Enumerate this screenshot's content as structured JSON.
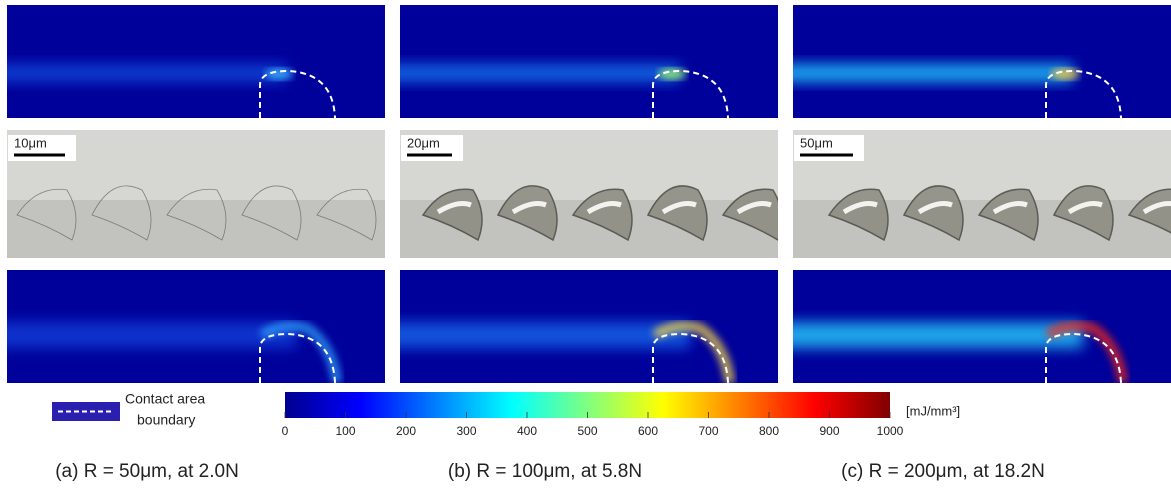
{
  "panels": [
    {
      "caption": "(a) R = 50μm, at 2.0N",
      "scale_bar": "10μm"
    },
    {
      "caption": "(b) R = 100μm, at 5.8N",
      "scale_bar": "20μm"
    },
    {
      "caption": "(c) R = 200μm, at 18.2N",
      "scale_bar": "50μm"
    }
  ],
  "legend": {
    "line1": "Contact area",
    "line2": "boundary"
  },
  "colorbar": {
    "unit": "[mJ/mm³]",
    "lim": [
      0,
      1000
    ],
    "ticks": [
      0,
      100,
      200,
      300,
      400,
      500,
      600,
      700,
      800,
      900,
      1000
    ]
  }
}
